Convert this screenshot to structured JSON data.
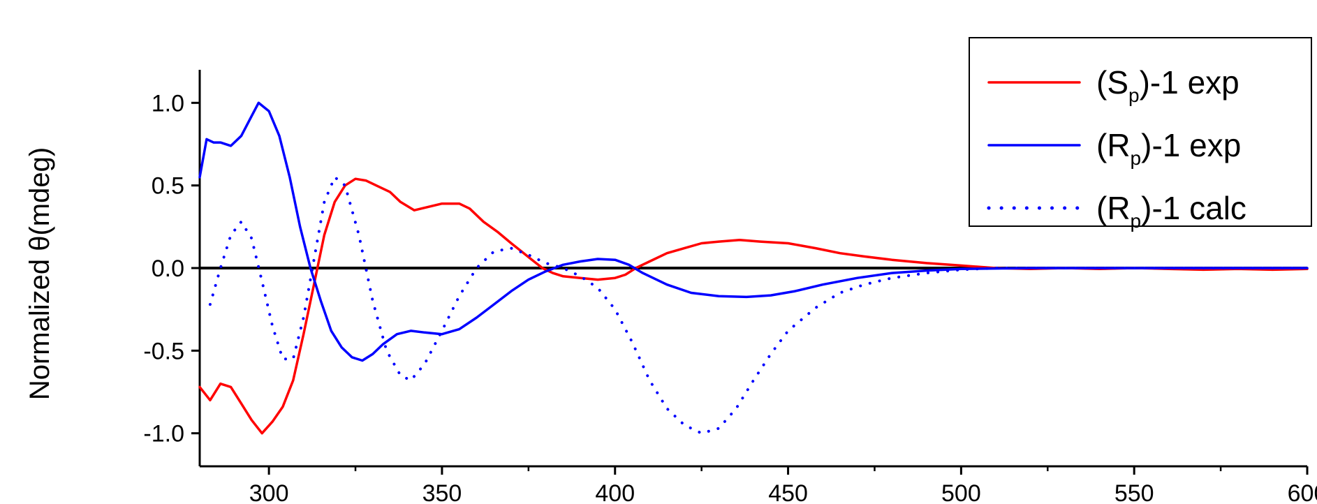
{
  "chart_data": {
    "type": "line",
    "title": "",
    "xlabel": "",
    "ylabel": "Normalized θ(mdeg)",
    "xlim": [
      280,
      600
    ],
    "ylim": [
      -1.2,
      1.2
    ],
    "x_ticks": [
      300,
      350,
      400,
      450,
      500,
      550,
      600
    ],
    "x_tick_labels": [
      "300",
      "350",
      "400",
      "450",
      "500",
      "550",
      "600"
    ],
    "y_ticks": [
      1.0,
      0.5,
      0.0,
      -0.5,
      -1.0
    ],
    "y_tick_labels": [
      "1.0",
      "0.5",
      "0.0",
      "-0.5",
      "-1.0"
    ],
    "grid": false,
    "zero_line": true,
    "legend_position": "top-right",
    "series": [
      {
        "name": "(Sp)-1 exp",
        "legend_main": "(S",
        "legend_sub": "p",
        "legend_tail": ")-1 exp",
        "color": "#ff0000",
        "style": "solid",
        "points": [
          [
            280,
            -0.72
          ],
          [
            283,
            -0.8
          ],
          [
            286,
            -0.7
          ],
          [
            289,
            -0.72
          ],
          [
            292,
            -0.82
          ],
          [
            295,
            -0.92
          ],
          [
            298,
            -1.0
          ],
          [
            301,
            -0.93
          ],
          [
            304,
            -0.84
          ],
          [
            307,
            -0.68
          ],
          [
            310,
            -0.4
          ],
          [
            313,
            -0.1
          ],
          [
            316,
            0.2
          ],
          [
            319,
            0.4
          ],
          [
            322,
            0.5
          ],
          [
            325,
            0.54
          ],
          [
            328,
            0.53
          ],
          [
            331,
            0.5
          ],
          [
            335,
            0.46
          ],
          [
            338,
            0.4
          ],
          [
            342,
            0.35
          ],
          [
            346,
            0.37
          ],
          [
            350,
            0.39
          ],
          [
            355,
            0.39
          ],
          [
            358,
            0.36
          ],
          [
            362,
            0.28
          ],
          [
            366,
            0.22
          ],
          [
            370,
            0.15
          ],
          [
            373,
            0.1
          ],
          [
            376,
            0.05
          ],
          [
            379,
            0.0
          ],
          [
            382,
            -0.03
          ],
          [
            385,
            -0.05
          ],
          [
            390,
            -0.06
          ],
          [
            395,
            -0.07
          ],
          [
            400,
            -0.06
          ],
          [
            403,
            -0.04
          ],
          [
            406,
            0.0
          ],
          [
            410,
            0.04
          ],
          [
            415,
            0.09
          ],
          [
            420,
            0.12
          ],
          [
            425,
            0.15
          ],
          [
            430,
            0.16
          ],
          [
            436,
            0.17
          ],
          [
            442,
            0.16
          ],
          [
            450,
            0.15
          ],
          [
            458,
            0.12
          ],
          [
            465,
            0.09
          ],
          [
            472,
            0.07
          ],
          [
            480,
            0.05
          ],
          [
            490,
            0.03
          ],
          [
            500,
            0.015
          ],
          [
            510,
            0.0
          ],
          [
            520,
            -0.005
          ],
          [
            530,
            0.0
          ],
          [
            540,
            -0.005
          ],
          [
            550,
            0.0
          ],
          [
            560,
            -0.005
          ],
          [
            570,
            -0.01
          ],
          [
            580,
            -0.005
          ],
          [
            590,
            -0.01
          ],
          [
            600,
            -0.005
          ]
        ]
      },
      {
        "name": "(Rp)-1 exp",
        "legend_main": "(R",
        "legend_sub": "p",
        "legend_tail": ")-1 exp",
        "color": "#0000ff",
        "style": "solid",
        "points": [
          [
            280,
            0.55
          ],
          [
            282,
            0.78
          ],
          [
            284,
            0.76
          ],
          [
            286,
            0.76
          ],
          [
            289,
            0.74
          ],
          [
            292,
            0.8
          ],
          [
            295,
            0.92
          ],
          [
            297,
            1.0
          ],
          [
            300,
            0.95
          ],
          [
            303,
            0.8
          ],
          [
            306,
            0.55
          ],
          [
            309,
            0.25
          ],
          [
            312,
            0.0
          ],
          [
            315,
            -0.2
          ],
          [
            318,
            -0.38
          ],
          [
            321,
            -0.48
          ],
          [
            324,
            -0.54
          ],
          [
            327,
            -0.56
          ],
          [
            330,
            -0.52
          ],
          [
            333,
            -0.46
          ],
          [
            337,
            -0.4
          ],
          [
            341,
            -0.38
          ],
          [
            345,
            -0.39
          ],
          [
            350,
            -0.4
          ],
          [
            355,
            -0.37
          ],
          [
            360,
            -0.3
          ],
          [
            365,
            -0.22
          ],
          [
            370,
            -0.14
          ],
          [
            375,
            -0.07
          ],
          [
            380,
            -0.02
          ],
          [
            385,
            0.02
          ],
          [
            390,
            0.04
          ],
          [
            395,
            0.055
          ],
          [
            400,
            0.05
          ],
          [
            404,
            0.02
          ],
          [
            408,
            -0.03
          ],
          [
            415,
            -0.1
          ],
          [
            422,
            -0.15
          ],
          [
            430,
            -0.17
          ],
          [
            438,
            -0.175
          ],
          [
            445,
            -0.165
          ],
          [
            452,
            -0.14
          ],
          [
            460,
            -0.1
          ],
          [
            470,
            -0.06
          ],
          [
            480,
            -0.03
          ],
          [
            490,
            -0.015
          ],
          [
            500,
            -0.005
          ],
          [
            520,
            0.0
          ],
          [
            540,
            0.0
          ],
          [
            560,
            0.0
          ],
          [
            580,
            0.0
          ],
          [
            600,
            0.0
          ]
        ]
      },
      {
        "name": "(Rp)-1 calc",
        "legend_main": "(R",
        "legend_sub": "p",
        "legend_tail": ")-1 calc",
        "color": "#0000ff",
        "style": "dotted",
        "points": [
          [
            283,
            -0.22
          ],
          [
            286,
            0.0
          ],
          [
            289,
            0.2
          ],
          [
            292,
            0.28
          ],
          [
            295,
            0.18
          ],
          [
            298,
            -0.08
          ],
          [
            301,
            -0.35
          ],
          [
            304,
            -0.55
          ],
          [
            307,
            -0.55
          ],
          [
            310,
            -0.3
          ],
          [
            313,
            0.05
          ],
          [
            316,
            0.4
          ],
          [
            319,
            0.55
          ],
          [
            322,
            0.5
          ],
          [
            326,
            0.2
          ],
          [
            330,
            -0.2
          ],
          [
            334,
            -0.5
          ],
          [
            338,
            -0.65
          ],
          [
            341,
            -0.68
          ],
          [
            345,
            -0.58
          ],
          [
            350,
            -0.38
          ],
          [
            355,
            -0.17
          ],
          [
            360,
            0.0
          ],
          [
            365,
            0.1
          ],
          [
            370,
            0.12
          ],
          [
            375,
            0.08
          ],
          [
            380,
            0.03
          ],
          [
            385,
            0.0
          ],
          [
            390,
            -0.05
          ],
          [
            395,
            -0.12
          ],
          [
            400,
            -0.25
          ],
          [
            405,
            -0.45
          ],
          [
            410,
            -0.68
          ],
          [
            415,
            -0.85
          ],
          [
            420,
            -0.95
          ],
          [
            425,
            -1.0
          ],
          [
            430,
            -0.97
          ],
          [
            435,
            -0.85
          ],
          [
            440,
            -0.68
          ],
          [
            445,
            -0.52
          ],
          [
            450,
            -0.38
          ],
          [
            458,
            -0.24
          ],
          [
            465,
            -0.15
          ],
          [
            472,
            -0.1
          ],
          [
            480,
            -0.06
          ],
          [
            490,
            -0.03
          ],
          [
            500,
            -0.01
          ],
          [
            510,
            0.0
          ],
          [
            530,
            0.0
          ],
          [
            560,
            0.0
          ],
          [
            600,
            0.0
          ]
        ]
      }
    ]
  }
}
